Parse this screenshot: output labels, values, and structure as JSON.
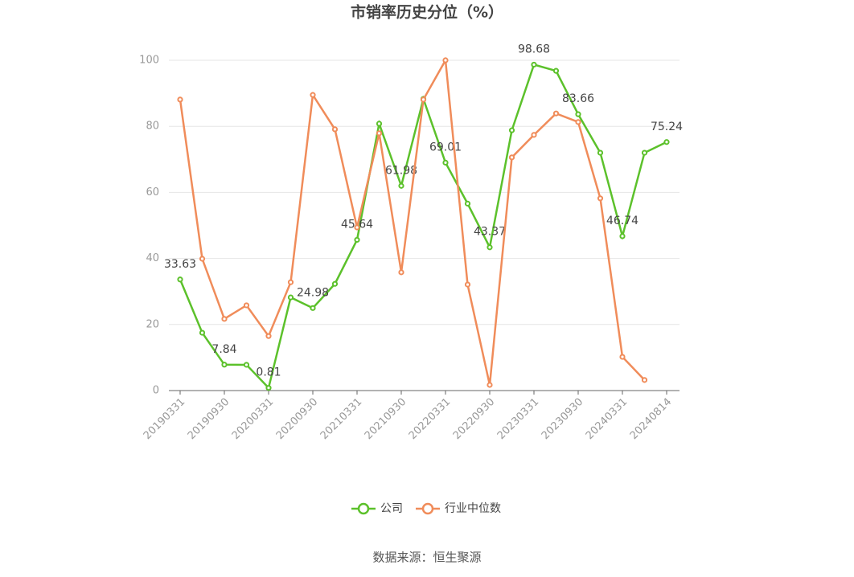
{
  "chart_data": {
    "type": "line",
    "title": "市销率历史分位（%）",
    "categories": [
      "20190331",
      null,
      "20190930",
      null,
      "20200331",
      null,
      "20200930",
      null,
      "20210331",
      null,
      "20210930",
      null,
      "20220331",
      null,
      "20220930",
      null,
      "20230331",
      null,
      "20230930",
      null,
      "20240331",
      null,
      "20240814"
    ],
    "series": [
      {
        "name": "公司",
        "color": "#5cc12b",
        "values": [
          33.63,
          17.5,
          7.84,
          7.8,
          0.81,
          28.2,
          24.98,
          32.3,
          45.64,
          80.8,
          61.98,
          88.3,
          69.01,
          56.6,
          43.37,
          78.8,
          98.68,
          96.8,
          83.66,
          72.0,
          46.74,
          72.0,
          75.24
        ],
        "value_labels": [
          "33.63",
          null,
          "7.84",
          null,
          "0.81",
          null,
          "24.98",
          null,
          "45.64",
          null,
          "61.98",
          null,
          "69.01",
          null,
          "43.37",
          null,
          "98.68",
          null,
          "83.66",
          null,
          "46.74",
          null,
          "75.24"
        ]
      },
      {
        "name": "行业中位数",
        "color": "#f08c5a",
        "values": [
          88.1,
          39.9,
          21.7,
          25.8,
          16.5,
          32.8,
          89.5,
          79.1,
          49.4,
          77.9,
          35.8,
          88.1,
          100,
          32.1,
          1.7,
          70.6,
          77.4,
          83.9,
          81.3,
          58.2,
          10.2,
          3.2,
          null
        ]
      }
    ],
    "ylim": [
      0,
      100
    ],
    "yticks": [
      0,
      20,
      40,
      60,
      80,
      100
    ],
    "grid": true,
    "legend": "bottom",
    "source": "数据来源：恒生聚源"
  }
}
